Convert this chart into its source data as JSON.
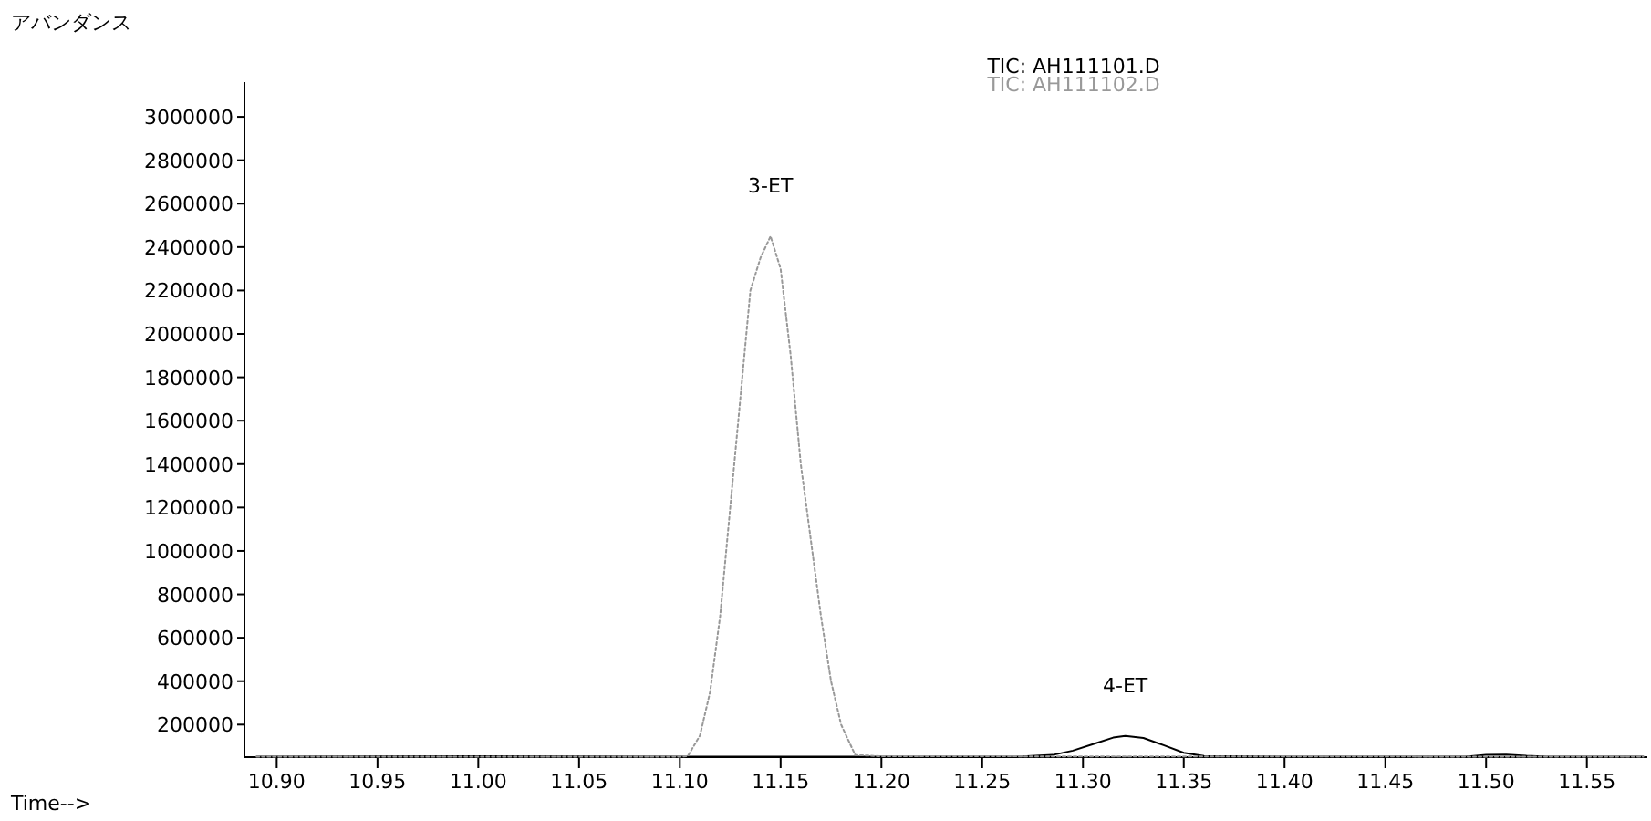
{
  "chart_data": {
    "type": "line",
    "ylabel": "アバンダンス",
    "xlabel": "Time-->",
    "legend": "top",
    "xlim": [
      10.884,
      11.58
    ],
    "ylim": [
      50000,
      3160000
    ],
    "xticks": [
      {
        "value": 10.9,
        "label": "10.90"
      },
      {
        "value": 10.95,
        "label": "10.95"
      },
      {
        "value": 11.0,
        "label": "11.00"
      },
      {
        "value": 11.05,
        "label": "11.05"
      },
      {
        "value": 11.1,
        "label": "11.10"
      },
      {
        "value": 11.15,
        "label": "11.15"
      },
      {
        "value": 11.2,
        "label": "11.20"
      },
      {
        "value": 11.25,
        "label": "11.25"
      },
      {
        "value": 11.3,
        "label": "11.30"
      },
      {
        "value": 11.35,
        "label": "11.35"
      },
      {
        "value": 11.4,
        "label": "11.40"
      },
      {
        "value": 11.45,
        "label": "11.45"
      },
      {
        "value": 11.5,
        "label": "11.50"
      },
      {
        "value": 11.55,
        "label": "11.55"
      }
    ],
    "yticks": [
      200000,
      400000,
      600000,
      800000,
      1000000,
      1200000,
      1400000,
      1600000,
      1800000,
      2000000,
      2200000,
      2400000,
      2600000,
      2800000,
      3000000
    ],
    "annotations": [
      {
        "text": "3-ET",
        "x": 11.145,
        "y": 2450000
      },
      {
        "text": "4-ET",
        "x": 11.321,
        "y": 148000
      }
    ],
    "series": [
      {
        "name": "TIC: AH111101.D",
        "color": "#000000",
        "line_style": "solid",
        "x": [
          10.89,
          11.0,
          11.1,
          11.2,
          11.27,
          11.285,
          11.295,
          11.305,
          11.315,
          11.321,
          11.33,
          11.34,
          11.35,
          11.36,
          11.4,
          11.49,
          11.5,
          11.51,
          11.52,
          11.53,
          11.578
        ],
        "values": [
          52000,
          54000,
          52000,
          52000,
          53000,
          60000,
          80000,
          110000,
          140000,
          148000,
          138000,
          105000,
          70000,
          55000,
          52000,
          52000,
          60000,
          62000,
          56000,
          52000,
          52000
        ]
      },
      {
        "name": "TIC: AH111102.D",
        "color": "#999999",
        "line_style": "dotted",
        "x": [
          10.89,
          11.1,
          11.104,
          11.11,
          11.115,
          11.12,
          11.125,
          11.13,
          11.135,
          11.14,
          11.145,
          11.15,
          11.155,
          11.16,
          11.165,
          11.17,
          11.175,
          11.18,
          11.187,
          11.2,
          11.578
        ],
        "values": [
          52000,
          52000,
          55000,
          150000,
          350000,
          700000,
          1200000,
          1700000,
          2200000,
          2350000,
          2450000,
          2300000,
          1900000,
          1400000,
          1050000,
          700000,
          400000,
          200000,
          60000,
          54000,
          52000
        ]
      }
    ]
  }
}
